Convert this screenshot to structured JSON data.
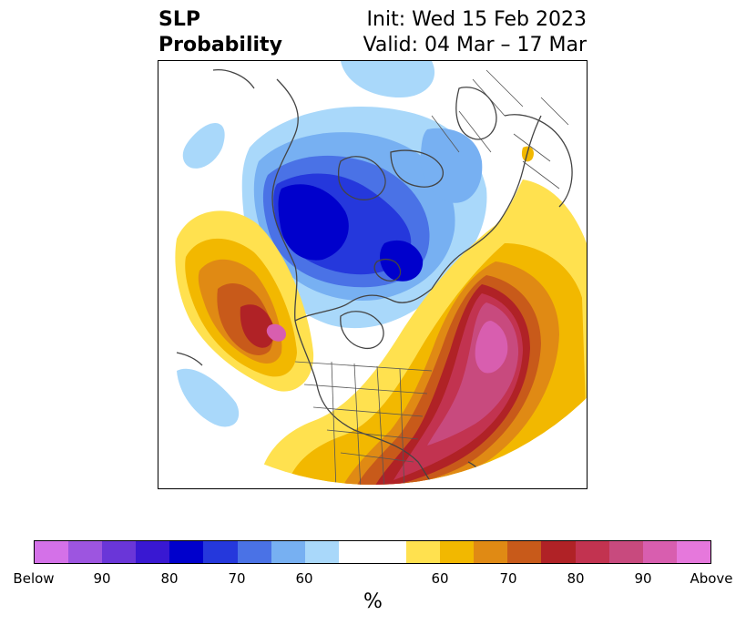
{
  "title": {
    "left_line1": "SLP",
    "left_line2": "Probability",
    "right_line1": "Init: Wed 15 Feb 2023",
    "right_line2": "Valid: 04 Mar – 17 Mar"
  },
  "colorbar": {
    "unit": "%",
    "colors": [
      "#d471e8",
      "#9d55e0",
      "#6a36d8",
      "#3918d2",
      "#0000cc",
      "#2538dc",
      "#4a72e6",
      "#77b0f2",
      "#a9d8fa",
      "#ffffff",
      "#ffffff",
      "#ffe14f",
      "#f2b800",
      "#e08a14",
      "#c85a1a",
      "#b02226",
      "#c23350",
      "#c84a7e",
      "#d85eaf",
      "#e678dc"
    ],
    "tick_labels": [
      "Below",
      "90",
      "80",
      "70",
      "60",
      "60",
      "70",
      "80",
      "90",
      "Above"
    ]
  },
  "map": {
    "projection": "north-polar-stereographic",
    "features": [
      "coastlines",
      "country-borders",
      "us-state-borders"
    ]
  }
}
